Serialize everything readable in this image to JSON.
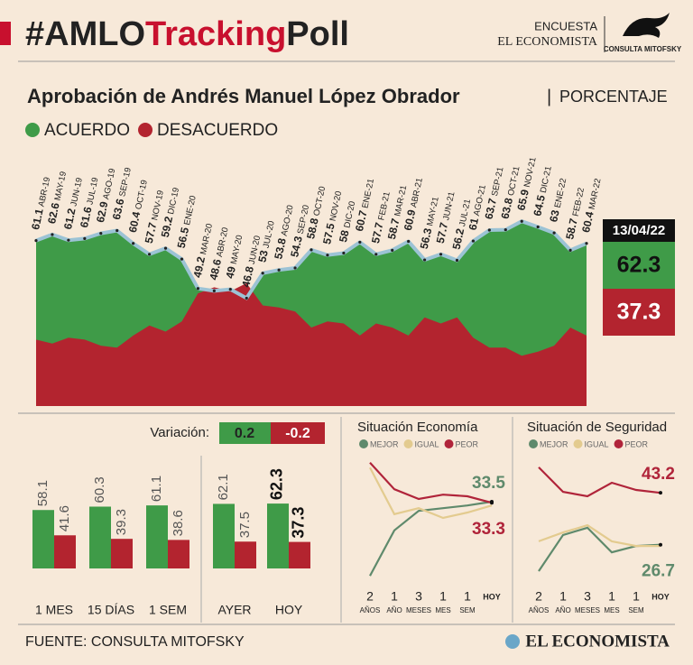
{
  "header": {
    "tag": [
      "#AMLO",
      "Tracking",
      "Poll"
    ],
    "survey": "ENCUESTA",
    "paper": "EL ECONOMISTA",
    "pollster": "CONSULTA MITOFSKY"
  },
  "chart_data": [
    {
      "type": "area",
      "title": "Aprobación de Andrés Manuel López Obrador",
      "subtitle": "PORCENTAJE",
      "categories": [
        "ABR-19",
        "MAY-19",
        "JUN-19",
        "JUL-19",
        "AGO-19",
        "SEP-19",
        "OCT-19",
        "NOV-19",
        "DIC-19",
        "ENE-20",
        "MAR-20",
        "ABR-20",
        "MAY-20",
        "JUN-20",
        "JUL-20",
        "AGO-20",
        "SEP-20",
        "OCT-20",
        "NOV-20",
        "DIC-20",
        "ENE-21",
        "FEB-21",
        "MAR-21",
        "ABR-21",
        "MAY-21",
        "JUN-21",
        "JUL-21",
        "AGO-21",
        "SEP-21",
        "OCT-21",
        "NOV-21",
        "DIC-21",
        "ENE-22",
        "FEB-22",
        "MAR-22"
      ],
      "series": [
        {
          "name": "ACUERDO",
          "color": "#3f9b48",
          "values": [
            61.1,
            62.6,
            61.2,
            61.6,
            62.9,
            63.6,
            60.4,
            57.7,
            59.2,
            56.5,
            49.2,
            48.6,
            49.0,
            46.8,
            53.0,
            53.8,
            54.3,
            58.8,
            57.5,
            58.0,
            60.7,
            57.7,
            58.7,
            60.9,
            56.3,
            57.7,
            56.2,
            61.0,
            63.7,
            63.8,
            65.9,
            64.5,
            63.0,
            58.7,
            60.4
          ]
        },
        {
          "name": "DESACUERDO",
          "color": "#b3242f",
          "values": [
            36.5,
            35.5,
            37,
            36.5,
            35,
            34.5,
            37.5,
            40,
            38.5,
            41,
            48,
            49.5,
            48.5,
            50.5,
            45,
            44.5,
            43.5,
            39.5,
            41,
            40.5,
            37.5,
            40.5,
            39.5,
            37.5,
            42,
            40.5,
            42,
            37,
            34.5,
            34.5,
            32.5,
            33.5,
            35,
            39.5,
            37.5
          ]
        }
      ],
      "line_color": "#9cc3d5",
      "ylim": [
        20,
        85
      ],
      "latest": {
        "date": "13/04/22",
        "values": [
          62.3,
          37.3
        ]
      }
    },
    {
      "type": "bar",
      "variation_label": "Variación:",
      "variation": [
        0.2,
        -0.2
      ],
      "categories": [
        "1 MES",
        "15 DÍAS",
        "1 SEM",
        "AYER",
        "HOY"
      ],
      "series": [
        {
          "color": "#3f9b48",
          "values": [
            58.1,
            60.3,
            61.1,
            62.1,
            62.3
          ]
        },
        {
          "color": "#b3242f",
          "values": [
            41.6,
            39.3,
            38.6,
            37.5,
            37.3
          ]
        }
      ],
      "ylim": [
        20,
        80
      ]
    },
    {
      "type": "line",
      "title": "Situación Economía",
      "categories": [
        [
          "2",
          "AÑOS"
        ],
        [
          "1",
          "AÑO"
        ],
        [
          "3",
          "MESES"
        ],
        [
          "1",
          "MES"
        ],
        [
          "1",
          "SEM"
        ],
        [
          "HOY"
        ]
      ],
      "series": [
        {
          "name": "MEJOR",
          "color": "#5f8a6c",
          "values": [
            19.8,
            28.2,
            31.8,
            32.3,
            32.8,
            33.5
          ]
        },
        {
          "name": "IGUAL",
          "color": "#e3cb8f",
          "values": [
            39.8,
            31.2,
            32.3,
            30.5,
            31.5,
            32.8
          ]
        },
        {
          "name": "PEOR",
          "color": "#b0243a",
          "values": [
            40.7,
            35.8,
            34.0,
            34.8,
            34.5,
            33.3
          ]
        }
      ],
      "ylim": [
        17,
        42
      ]
    },
    {
      "type": "line",
      "title": "Situación de Seguridad",
      "categories": [
        [
          "2",
          "AÑOS"
        ],
        [
          "1",
          "AÑO"
        ],
        [
          "3",
          "MESES"
        ],
        [
          "1",
          "MES"
        ],
        [
          "1",
          "SEM"
        ],
        [
          "HOY"
        ]
      ],
      "series": [
        {
          "name": "MEJOR",
          "color": "#5f8a6c",
          "values": [
            18.3,
            29.8,
            32.1,
            24.3,
            26.3,
            26.7
          ]
        },
        {
          "name": "IGUAL",
          "color": "#e3cb8f",
          "values": [
            27.8,
            30.6,
            32.9,
            27.8,
            26.3,
            26.3
          ]
        },
        {
          "name": "PEOR",
          "color": "#b0243a",
          "values": [
            51.3,
            43.5,
            42.1,
            46.4,
            44.1,
            43.2
          ]
        }
      ],
      "ylim": [
        12,
        55
      ]
    }
  ],
  "footer": {
    "source": "FUENTE: CONSULTA MITOFSKY",
    "logo": "EL ECONOMISTA"
  }
}
